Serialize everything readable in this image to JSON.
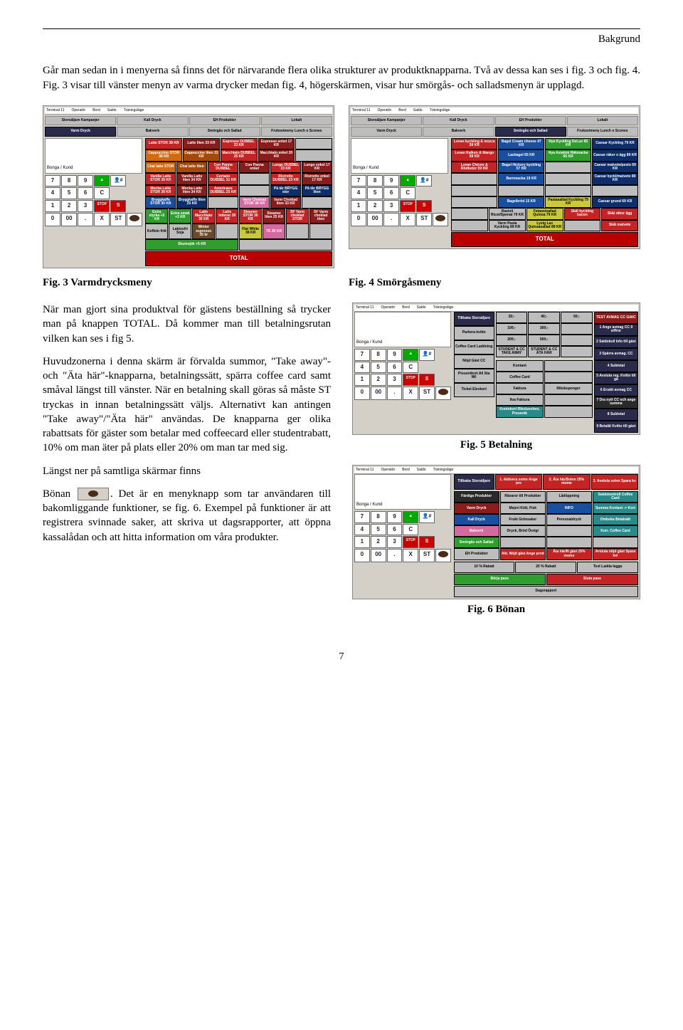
{
  "header": "Bakgrund",
  "intro": "Går man sedan in i menyerna så finns det för närvarande flera olika strukturer av produktknapparna. Två av dessa kan ses i fig. 3 och fig. 4. Fig. 3 visar till vänster menyn av varma drycker medan fig. 4, högerskärmen, visar hur smörgås- och salladsmenyn är upplagd.",
  "fig3_caption": "Fig. 3 Varmdrycksmeny",
  "fig4_caption": "Fig. 4 Smörgåsmeny",
  "fig5_caption": "Fig. 5 Betalning",
  "fig6_caption": "Fig. 6 Bönan",
  "para1": "När man gjort sina produktval för gästens beställning så trycker man på knappen TOTAL. Då kommer man till betalningsrutan vilken kan ses i fig 5.",
  "para2": "Huvudzonerna i denna skärm är förvalda summor, \"Take away\"- och \"Äta här\"-knapparna, betalningssätt, spärra coffee card samt småval längst till vänster. När en betalning skall göras så måste ST tryckas in innan betalningssätt väljs. Alternativt kan antingen \"Take away\"/\"Äta här\" användas. De knapparna ger olika rabattsats för gäster som betalar med coffeecard eller studentrabatt, 10% om man äter på plats eller 20% om man tar med sig.",
  "para3_a": "Längst ner på samtliga skärmar finns",
  "para3_b": "Bönan ",
  "para3_c": ". Det är en menyknapp som tar användaren till bakomliggande funktioner, se fig. 6. Exempel på funktioner är att registrera svinnade saker, att skriva ut dagsrapporter, att öppna kassalådan och att hitta information om våra produkter.",
  "bonga_label": "Bonga / Kund",
  "total_label": "TOTAL",
  "topbar_items": [
    "Terminal 11",
    "Operatör",
    "Bord",
    "Saldo",
    "Träningsläge"
  ],
  "toptabs": [
    "Storsäljare Kampanjer",
    "Kall Dryck",
    "EH Produkter",
    "Lokalt"
  ],
  "subtabs3": [
    "Varm Dryck",
    "Bakverk",
    "Smörgås och Sallad",
    "Frukostmeny Lunch o Scones"
  ],
  "subtabs4": [
    "Varm Dryck",
    "Bakverk",
    "Smörgås och Sallad",
    "Frukostmeny Lunch o Scones"
  ],
  "keypad": [
    "7",
    "8",
    "9",
    "▲",
    "",
    "",
    "4",
    "5",
    "6",
    "C",
    "",
    "",
    "1",
    "2",
    "3",
    "STOP",
    "S",
    "",
    "0",
    "00",
    ".",
    "X",
    "ST",
    ""
  ],
  "keypad_person_idx": 4,
  "keypad_stop_idx": 15,
  "keypad_s_idx": 16,
  "keypad_bean_idx": 23,
  "fig3_rows": [
    [
      {
        "t": "Latte STOR 38 KR",
        "c": "c-red"
      },
      {
        "t": "Latte liten 33 KR",
        "c": "c-dred"
      },
      {
        "t": "Espresso DUBBEL 23 KR",
        "c": "c-red"
      },
      {
        "t": "Espresso enkel 17 KR",
        "c": "c-dred"
      },
      {
        "t": "",
        "c": "c-gray"
      }
    ],
    [
      {
        "t": "Cappuccino STOR 38 KR",
        "c": "c-org"
      },
      {
        "t": "Cappuccino liten 33 KR",
        "c": "c-dorg"
      },
      {
        "t": "Macchiato DUBBEL 25 KR",
        "c": "c-red"
      },
      {
        "t": "Macchiato enkel 20 KR",
        "c": "c-dred"
      },
      {
        "t": "",
        "c": "c-gray"
      }
    ],
    [
      {
        "t": "Chai latte STOR",
        "c": "c-org"
      },
      {
        "t": "Chai latte liten",
        "c": "c-dorg"
      },
      {
        "t": "Con Panna DUBBEL",
        "c": "c-red"
      },
      {
        "t": "Con Panna enkel",
        "c": "c-dred"
      },
      {
        "t": "Lungo DUBBEL 23 KR",
        "c": "c-red"
      },
      {
        "t": "Lungo enkel 17 KR",
        "c": "c-dred"
      }
    ],
    [
      {
        "t": "Vanilla Latte STOR 39 KR",
        "c": "c-red"
      },
      {
        "t": "Vanilla Latte liten 34 KR",
        "c": "c-dred"
      },
      {
        "t": "Cortado DUBBEL 31 KR",
        "c": "c-red"
      },
      {
        "t": "",
        "c": "c-gray"
      },
      {
        "t": "Ristretto DUBBEL 23 KR",
        "c": "c-red"
      },
      {
        "t": "Ristretto enkel 17 KR",
        "c": "c-dred"
      }
    ],
    [
      {
        "t": "Mocka Latte STOR 39 KR",
        "c": "c-red"
      },
      {
        "t": "Mocka Latte liten 34 KR",
        "c": "c-dred"
      },
      {
        "t": "Americano DUBBEL 25 KR",
        "c": "c-red"
      },
      {
        "t": "",
        "c": "c-gray"
      },
      {
        "t": "På tår BRYGG stor",
        "c": "c-dblue"
      },
      {
        "t": "På tår BRYGG liten",
        "c": "c-dblue"
      }
    ],
    [
      {
        "t": "Bryggkaffe STOR 30 KR",
        "c": "c-blue"
      },
      {
        "t": "Bryggkaffe liten 25 KR",
        "c": "c-dblue"
      },
      {
        "t": "",
        "c": "c-gray"
      },
      {
        "t": "Varm Choklad STOR 38 KR",
        "c": "c-pink"
      },
      {
        "t": "Varm Choklad liten 33 KR",
        "c": "c-dred"
      },
      {
        "t": "",
        "c": "c-gray"
      }
    ],
    [
      {
        "t": "Extra styrka +5 KR",
        "c": "c-grn"
      },
      {
        "t": "Extra smak +3 KR",
        "c": "c-grn"
      },
      {
        "t": "Latte Macchiato 30 KR",
        "c": "c-red"
      },
      {
        "t": "Latte Inferno 39 KR",
        "c": "c-red"
      },
      {
        "t": "Steamer STOR 30 KR",
        "c": "c-red"
      },
      {
        "t": "Steamer liten 25 KR",
        "c": "c-dred"
      },
      {
        "t": "SF Varm choklad STOR",
        "c": "c-red"
      },
      {
        "t": "SF Varm choklad liten",
        "c": "c-dred"
      }
    ],
    [
      {
        "t": "Koffein fritt",
        "c": "c-gray"
      },
      {
        "t": "Laktosfri Soja",
        "c": "c-gray"
      },
      {
        "t": "Winter espresso 35 kr",
        "c": "c-brown"
      },
      {
        "t": "",
        "c": "c-gray"
      },
      {
        "t": "Flat White 38 KR",
        "c": "c-yellow"
      },
      {
        "t": "TE 20 KR",
        "c": "c-pink"
      },
      {
        "t": "",
        "c": "c-gray"
      },
      {
        "t": "",
        "c": "c-gray"
      }
    ],
    [
      {
        "t": "Skumsjök +5 KR",
        "c": "c-grn"
      },
      {
        "t": "",
        "c": "c-gray"
      }
    ]
  ],
  "fig4_rows": [
    [
      {
        "t": "Levan kyckling & mozza 59 KR",
        "c": "c-red"
      },
      {
        "t": "Bagel Cream cheese 47 KR",
        "c": "c-blue"
      },
      {
        "t": "Nya Kyckling DeLux 65 KR",
        "c": "c-grn"
      },
      {
        "t": "Caesar Kyckling 79 KR",
        "c": "c-dblue"
      }
    ],
    [
      {
        "t": "Levan Kalkon & Mango 59 KR",
        "c": "c-red"
      },
      {
        "t": "Laxbagel 65 KR",
        "c": "c-blue"
      },
      {
        "t": "Nya Asiatisk Räkmacka 65 KR",
        "c": "c-grn"
      },
      {
        "t": "Caesar räkor o ägg 89 KR",
        "c": "c-dblue"
      }
    ],
    [
      {
        "t": "Levan Chèvre & Rödbetor 59 KR",
        "c": "c-red"
      },
      {
        "t": "Bagel Hickory kyckling 57 KR",
        "c": "c-blue"
      },
      {
        "t": "",
        "c": "c-gray"
      },
      {
        "t": "Caesar matvete/pesto 69 KR",
        "c": "c-dblue"
      }
    ],
    [
      {
        "t": "",
        "c": "c-gray"
      },
      {
        "t": "Barnmacka 19 KR",
        "c": "c-blue"
      },
      {
        "t": "",
        "c": "c-gray"
      },
      {
        "t": "Caesar kyckl/matvete 89 KR",
        "c": "c-dblue"
      }
    ],
    [
      {
        "t": "",
        "c": "c-gray"
      },
      {
        "t": "",
        "c": "c-gray"
      },
      {
        "t": "",
        "c": "c-gray"
      },
      {
        "t": "",
        "c": "c-gray"
      }
    ],
    [
      {
        "t": "",
        "c": "c-gray"
      },
      {
        "t": "Bagelbröd 15 KR",
        "c": "c-blue"
      },
      {
        "t": "Pastasallad Kyckling 79 KR",
        "c": "c-yellow"
      },
      {
        "t": "Caesar grund 69 KR",
        "c": "c-dblue"
      }
    ],
    [
      {
        "t": "",
        "c": "c-gray"
      },
      {
        "t": "Ravioli Ricot/Spenat 79 KR",
        "c": "c-gray"
      },
      {
        "t": "Fetaostsallad Quinoa 79 KR",
        "c": "c-yellow"
      },
      {
        "t": "Skål kyckling bacon",
        "c": "c-red"
      },
      {
        "t": "Skål räkor ägg",
        "c": "c-red"
      }
    ],
    [
      {
        "t": "",
        "c": "c-gray"
      },
      {
        "t": "Varm Pasta Kyckling 89 KR",
        "c": "c-gray"
      },
      {
        "t": "Lyxig Lax Quinoasallad 89 KR",
        "c": "c-yellow"
      },
      {
        "t": "",
        "c": "c-gray"
      },
      {
        "t": "Skål matvete",
        "c": "c-red"
      }
    ]
  ],
  "fig5_left": [
    {
      "t": "Tillbaka Storsäljare",
      "c": "c-navy"
    },
    {
      "t": "Parkera kvitto",
      "c": "c-gray"
    },
    {
      "t": "Coffee Card Laddning",
      "c": "c-gray"
    },
    {
      "t": "Nöjd Gäst CC",
      "c": "c-gray"
    },
    {
      "t": "Presentkort Ali Sta NK",
      "c": "c-gray"
    },
    {
      "t": "Ticket Elevkort",
      "c": "c-gray"
    }
  ],
  "fig5_presets": [
    [
      {
        "t": "20;-",
        "c": "c-gray"
      },
      {
        "t": "40;-",
        "c": "c-gray"
      },
      {
        "t": "50;-",
        "c": "c-gray"
      }
    ],
    [
      {
        "t": "100;-",
        "c": "c-gray"
      },
      {
        "t": "300;-",
        "c": "c-gray"
      },
      {
        "t": "",
        "c": "c-gray"
      }
    ],
    [
      {
        "t": "200;-",
        "c": "c-gray"
      },
      {
        "t": "500;-",
        "c": "c-gray"
      },
      {
        "t": "",
        "c": "c-gray"
      }
    ],
    [
      {
        "t": "STUDENT & CC TAKE AWAY",
        "c": "c-gray"
      },
      {
        "t": "STUDENT & CC ÄTA HÄR",
        "c": "c-gray"
      },
      {
        "t": "",
        "c": "c-gray"
      }
    ]
  ],
  "fig5_right": [
    {
      "t": "TEST AVMAG CC Gilt/C",
      "c": "c-dred"
    },
    {
      "t": "1 Ange avmag CC 9 siffror",
      "c": "c-navy"
    },
    {
      "t": "2 Saldokoll Info till gäst",
      "c": "c-navy"
    },
    {
      "t": "3 Spärra avmag. CC",
      "c": "c-navy"
    },
    {
      "t": "4 Subtotal",
      "c": "c-navy"
    },
    {
      "t": "5 Avsluta reg. Kvitto till gä",
      "c": "c-navy"
    },
    {
      "t": "6 Ersätt avmag CC",
      "c": "c-navy"
    },
    {
      "t": "7 Dra nytt CC och ange summa",
      "c": "c-black"
    },
    {
      "t": "8 Subtotal",
      "c": "c-navy"
    },
    {
      "t": "9 Betaläl Kvitto till gäst",
      "c": "c-navy"
    }
  ],
  "fig5_pay": [
    [
      {
        "t": "Kontant",
        "c": "c-gray"
      },
      {
        "t": "",
        "c": "c-gray"
      }
    ],
    [
      {
        "t": "Coffee Card",
        "c": "c-gray"
      },
      {
        "t": "",
        "c": "c-gray"
      }
    ],
    [
      {
        "t": "Faktura",
        "c": "c-gray"
      },
      {
        "t": "Rikskuponger",
        "c": "c-gray"
      }
    ],
    [
      {
        "t": "Ilva Faktura",
        "c": "c-gray"
      },
      {
        "t": "",
        "c": "c-gray"
      }
    ],
    [
      {
        "t": "Kontokort Rikslunchen, Presentk",
        "c": "c-teal"
      },
      {
        "t": "",
        "c": "c-gray"
      }
    ]
  ],
  "fig6_tillbaka": "Tillbaka Storsäljare",
  "fig6_top": [
    {
      "t": "1. Aktivera svinn Ange pro",
      "c": "c-red"
    },
    {
      "t": "2. Äta här/Svinn 25% moms",
      "c": "c-red"
    },
    {
      "t": "3. Avsluta svinn Spara kv",
      "c": "c-red"
    }
  ],
  "fig6_grid": [
    [
      {
        "t": "Färdiga Produkter",
        "c": "c-black"
      },
      {
        "t": "Råvaror till Produkter",
        "c": "c-gray"
      },
      {
        "t": "Lådöppning",
        "c": "c-gray"
      },
      {
        "t": "Saldokontroll Coffee Card",
        "c": "c-teal"
      }
    ],
    [
      {
        "t": "Varm Dryck",
        "c": "c-dred"
      },
      {
        "t": "Mejeri Kött, Fisk",
        "c": "c-gray"
      },
      {
        "t": "INFO",
        "c": "c-blue"
      },
      {
        "t": "Summa Kontant -> Kort",
        "c": "c-teal"
      }
    ],
    [
      {
        "t": "Kall Dryck",
        "c": "c-blue"
      },
      {
        "t": "Frukt Grönsaker",
        "c": "c-gray"
      },
      {
        "t": "Personaldryck",
        "c": "c-gray"
      },
      {
        "t": "Omboka Betalsätt",
        "c": "c-teal"
      }
    ],
    [
      {
        "t": "Bakverk",
        "c": "c-pink"
      },
      {
        "t": "Dryck, Bröd Övrigt",
        "c": "c-gray"
      },
      {
        "t": "",
        "c": "c-gray"
      },
      {
        "t": "Korr. Coffee Card",
        "c": "c-teal"
      }
    ],
    [
      {
        "t": "Smörgås och Sallad",
        "c": "c-grn"
      },
      {
        "t": "",
        "c": "c-gray"
      },
      {
        "t": "",
        "c": "c-gray"
      },
      {
        "t": "",
        "c": "c-gray"
      }
    ],
    [
      {
        "t": "EH Produkter",
        "c": "c-gray"
      },
      {
        "t": "Akt. Nöjd gäst Ange prod",
        "c": "c-red"
      },
      {
        "t": "Äta här/N gäst 25% moms",
        "c": "c-red"
      },
      {
        "t": "Avsluta nöjd gäst Spara kvi",
        "c": "c-red"
      }
    ]
  ],
  "fig6_bottom": [
    {
      "t": "10 % Rabatt",
      "c": "c-gray"
    },
    {
      "t": "20 % Rabatt",
      "c": "c-gray"
    },
    {
      "t": "Test Ladda lagga",
      "c": "c-gray"
    },
    {
      "t": "Börja pass",
      "c": "c-grn"
    },
    {
      "t": "Sluta pass",
      "c": "c-red"
    },
    {
      "t": "Dagsrapport",
      "c": "c-gray"
    }
  ],
  "page_number": "7"
}
